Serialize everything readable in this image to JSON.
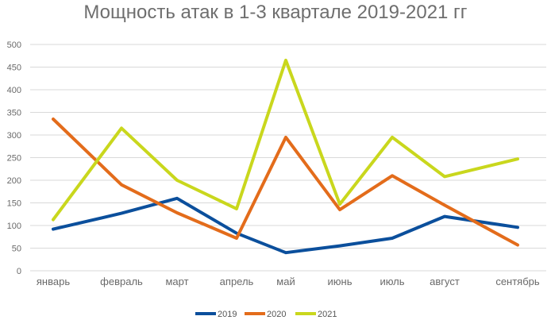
{
  "chart_data": {
    "type": "line",
    "title": "Мощность атак в 1-3 квартале 2019-2021 гг",
    "categories": [
      "январь",
      "февраль",
      "март",
      "апрель",
      "май",
      "июнь",
      "июль",
      "август",
      "сентябрь"
    ],
    "ylim": [
      0,
      500
    ],
    "yticks": [
      "0",
      "50",
      "100",
      "150",
      "200",
      "250",
      "300",
      "350",
      "400",
      "450",
      "500"
    ],
    "grid": true,
    "legend": "bottom",
    "series": [
      {
        "name": "2019",
        "color": "#0b4f9c",
        "values": [
          92,
          127,
          160,
          83,
          40,
          55,
          72,
          120,
          96
        ]
      },
      {
        "name": "2020",
        "color": "#e36c1b",
        "values": [
          335,
          190,
          128,
          72,
          295,
          135,
          210,
          145,
          57
        ]
      },
      {
        "name": "2021",
        "color": "#c9d71d",
        "values": [
          113,
          315,
          200,
          137,
          465,
          147,
          295,
          208,
          247
        ]
      }
    ]
  }
}
